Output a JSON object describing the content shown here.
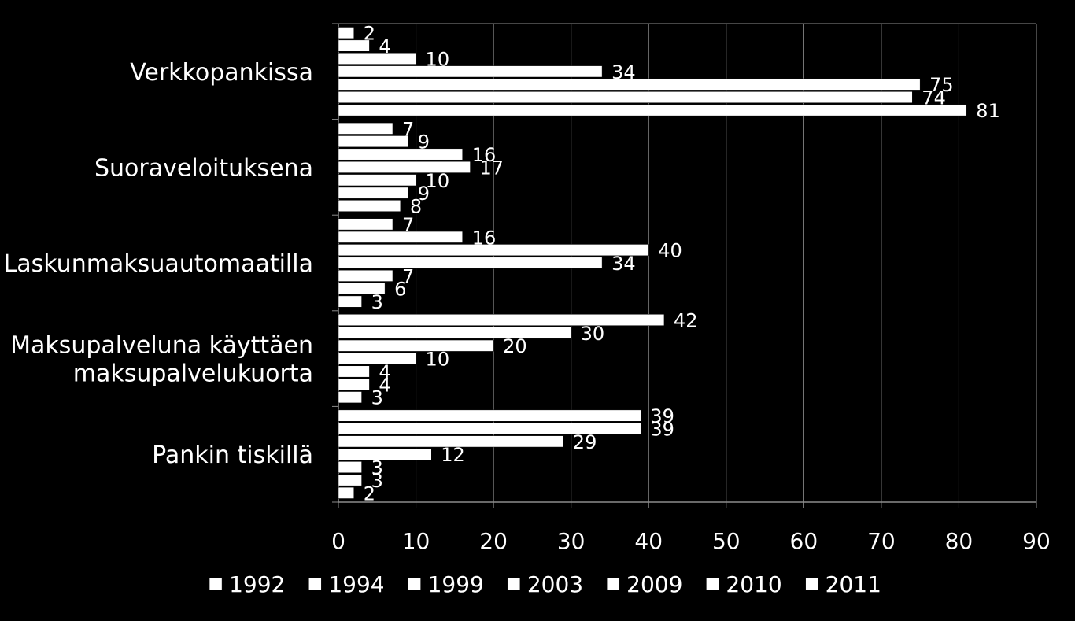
{
  "chart_data": {
    "type": "bar",
    "orientation": "horizontal",
    "title": "",
    "xlabel": "",
    "ylabel": "",
    "xlim": [
      0,
      90
    ],
    "xticks": [
      0,
      10,
      20,
      30,
      40,
      50,
      60,
      70,
      80,
      90
    ],
    "grid": true,
    "legend_position": "bottom",
    "bar_color": "#ffffff",
    "background": "#000000",
    "categories": [
      [
        "Verkkopankissa"
      ],
      [
        "Suoraveloituksena"
      ],
      [
        "Laskunmaksuautomaatilla"
      ],
      [
        "Maksupalveluna käyttäen",
        "maksupalvelukuorta"
      ],
      [
        "Pankin tiskillä"
      ]
    ],
    "series": [
      {
        "name": "1992",
        "values": [
          2,
          7,
          7,
          42,
          39
        ]
      },
      {
        "name": "1994",
        "values": [
          4,
          9,
          16,
          30,
          39
        ]
      },
      {
        "name": "1999",
        "values": [
          10,
          16,
          40,
          20,
          29
        ]
      },
      {
        "name": "2003",
        "values": [
          34,
          17,
          34,
          10,
          12
        ]
      },
      {
        "name": "2009",
        "values": [
          75,
          10,
          7,
          4,
          3
        ]
      },
      {
        "name": "2010",
        "values": [
          74,
          9,
          6,
          4,
          3
        ]
      },
      {
        "name": "2011",
        "values": [
          81,
          8,
          3,
          3,
          2
        ]
      }
    ]
  }
}
